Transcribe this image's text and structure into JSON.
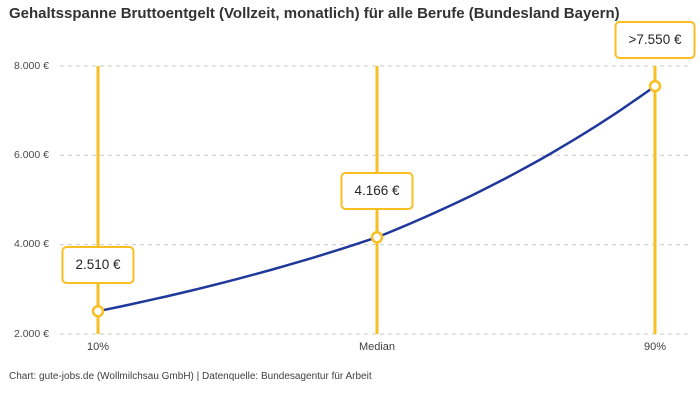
{
  "chart_data": {
    "type": "line",
    "title": "Gehaltsspanne Bruttoentgelt (Vollzeit, monatlich) für alle Berufe (Bundesland Bayern)",
    "categories": [
      "10%",
      "Median",
      "90%"
    ],
    "values": [
      2510,
      4166,
      7550
    ],
    "value_labels": [
      "2.510 €",
      "4.166 €",
      ">7.550 €"
    ],
    "xlabel": "",
    "ylabel": "",
    "ylim": [
      2000,
      8000
    ],
    "ytick_values_top_to_bottom": [
      8000,
      6000,
      4000,
      2000
    ],
    "ytick_labels": [
      "8.000 €",
      "6.000 €",
      "4.000 €",
      "2.000 €"
    ],
    "grid": "horizontal-dashed",
    "legend": "none",
    "colors": {
      "line": "#20389b",
      "accent": "#f9be21",
      "grid": "#c9c9c9",
      "marker_fill": "#ffffff"
    },
    "source": "Chart: gute-jobs.de (Wollmilchsau GmbH) | Datenquelle: Bundesagentur für Arbeit"
  }
}
